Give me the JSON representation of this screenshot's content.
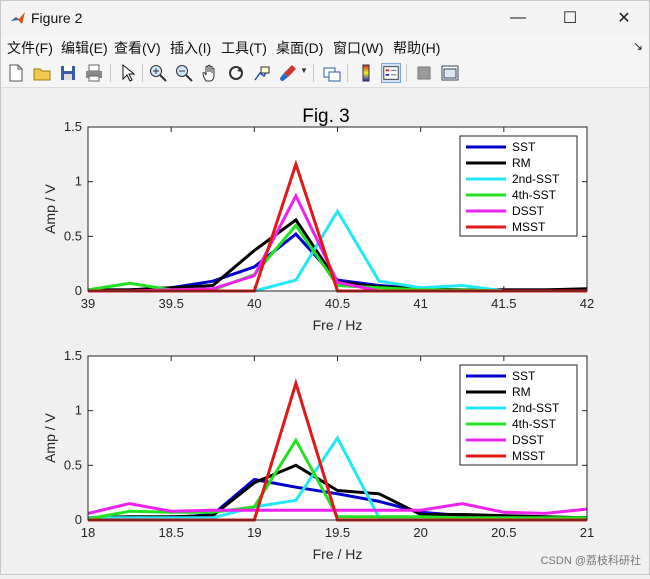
{
  "window": {
    "title": "Figure 2",
    "controls": {
      "minimize": "—",
      "maximize": "☐",
      "close": "✕"
    }
  },
  "menu": {
    "items": [
      "文件(F)",
      "编辑(E)",
      "查看(V)",
      "插入(I)",
      "工具(T)",
      "桌面(D)",
      "窗口(W)",
      "帮助(H)"
    ],
    "overflow": "↘"
  },
  "toolbar": {
    "icons": [
      "new-figure-icon",
      "open-file-icon",
      "save-icon",
      "print-icon",
      "pointer-icon",
      "zoom-in-icon",
      "zoom-out-icon",
      "pan-icon",
      "rotate-3d-icon",
      "data-cursor-icon",
      "brush-icon",
      "link-plot-icon",
      "colorbar-icon",
      "legend-icon",
      "hide-plot-tools-icon",
      "show-plot-tools-icon"
    ]
  },
  "figure": {
    "title": "Fig. 3"
  },
  "colors": {
    "SST": "#0000cc",
    "RM": "#000000",
    "2nd-SST": "#22e8f5",
    "4th-SST": "#22e022",
    "DSST": "#ee22ee",
    "MSST": "#e01818"
  },
  "chart_data": [
    {
      "type": "line",
      "xlabel": "Fre / Hz",
      "ylabel": "Amp / V",
      "xlim": [
        39,
        42
      ],
      "ylim": [
        0,
        1.5
      ],
      "xticks": [
        39,
        39.5,
        40,
        40.5,
        41,
        41.5,
        42
      ],
      "xtick_labels": [
        "39",
        "39.5",
        "40",
        "40.5",
        "41",
        "41.5",
        "42"
      ],
      "yticks": [
        0,
        0.5,
        1,
        1.5
      ],
      "ytick_labels": [
        "0",
        "0.5",
        "1",
        "1.5"
      ],
      "legend_position": "top-right",
      "series": [
        {
          "name": "SST",
          "x": [
            39,
            39.25,
            39.5,
            39.75,
            40,
            40.25,
            40.5,
            40.75,
            41,
            41.25,
            41.5,
            41.75,
            42
          ],
          "values": [
            0.01,
            0.01,
            0.03,
            0.09,
            0.22,
            0.52,
            0.1,
            0.05,
            0.02,
            0.01,
            0.01,
            0.01,
            0.01
          ]
        },
        {
          "name": "RM",
          "x": [
            39,
            39.25,
            39.5,
            39.75,
            40,
            40.25,
            40.5,
            40.75,
            41,
            41.25,
            41.5,
            41.75,
            42
          ],
          "values": [
            0.01,
            0.01,
            0.03,
            0.05,
            0.37,
            0.65,
            0.08,
            0.04,
            0.02,
            0.01,
            0.01,
            0.01,
            0.02
          ]
        },
        {
          "name": "2nd-SST",
          "x": [
            39,
            39.25,
            39.5,
            39.75,
            40,
            40.25,
            40.5,
            40.75,
            41,
            41.25,
            41.5,
            41.75,
            42
          ],
          "values": [
            0.0,
            0.0,
            0.0,
            0.0,
            0.0,
            0.1,
            0.73,
            0.09,
            0.03,
            0.05,
            0.0,
            0.0,
            0.0
          ]
        },
        {
          "name": "4th-SST",
          "x": [
            39,
            39.25,
            39.5,
            39.75,
            40,
            40.25,
            40.5,
            40.75,
            41,
            41.25,
            41.5,
            41.75,
            42
          ],
          "values": [
            0.01,
            0.07,
            0.01,
            0.01,
            0.15,
            0.6,
            0.05,
            0.03,
            0.01,
            0.01,
            0.0,
            0.0,
            0.0
          ]
        },
        {
          "name": "DSST",
          "x": [
            39,
            39.25,
            39.5,
            39.75,
            40,
            40.25,
            40.5,
            40.75,
            41,
            41.25,
            41.5,
            41.75,
            42
          ],
          "values": [
            0.0,
            0.0,
            0.01,
            0.02,
            0.14,
            0.87,
            0.08,
            0.0,
            0.0,
            0.0,
            0.0,
            0.0,
            0.0
          ]
        },
        {
          "name": "MSST",
          "x": [
            39,
            39.25,
            39.5,
            39.75,
            40,
            40.25,
            40.5,
            40.75,
            41,
            41.25,
            41.5,
            41.75,
            42
          ],
          "values": [
            0.0,
            0.0,
            0.0,
            0.0,
            0.0,
            1.16,
            0.0,
            0.0,
            0.0,
            0.0,
            0.0,
            0.0,
            0.0
          ]
        }
      ]
    },
    {
      "type": "line",
      "xlabel": "Fre / Hz",
      "ylabel": "Amp / V",
      "xlim": [
        18,
        21
      ],
      "ylim": [
        0,
        1.5
      ],
      "xticks": [
        18,
        18.5,
        19,
        19.5,
        20,
        20.5,
        21
      ],
      "xtick_labels": [
        "18",
        "18.5",
        "19",
        "19.5",
        "20",
        "20.5",
        "21"
      ],
      "yticks": [
        0,
        0.5,
        1,
        1.5
      ],
      "ytick_labels": [
        "0",
        "0.5",
        "1",
        "1.5"
      ],
      "legend_position": "top-right",
      "series": [
        {
          "name": "SST",
          "x": [
            18,
            18.25,
            18.5,
            18.75,
            19,
            19.25,
            19.5,
            19.75,
            20,
            20.25,
            20.5,
            20.75,
            21
          ],
          "values": [
            0.01,
            0.02,
            0.02,
            0.05,
            0.37,
            0.3,
            0.24,
            0.17,
            0.07,
            0.04,
            0.03,
            0.02,
            0.02
          ]
        },
        {
          "name": "RM",
          "x": [
            18,
            18.25,
            18.5,
            18.75,
            19,
            19.25,
            19.5,
            19.75,
            20,
            20.25,
            20.5,
            20.75,
            21
          ],
          "values": [
            0.02,
            0.03,
            0.03,
            0.04,
            0.34,
            0.5,
            0.27,
            0.24,
            0.05,
            0.05,
            0.04,
            0.03,
            0.02
          ]
        },
        {
          "name": "2nd-SST",
          "x": [
            18,
            18.25,
            18.5,
            18.75,
            19,
            19.25,
            19.5,
            19.75,
            20,
            20.25,
            20.5,
            20.75,
            21
          ],
          "values": [
            0.02,
            0.02,
            0.02,
            0.02,
            0.12,
            0.18,
            0.75,
            0.02,
            0.02,
            0.01,
            0.01,
            0.01,
            0.01
          ]
        },
        {
          "name": "4th-SST",
          "x": [
            18,
            18.25,
            18.5,
            18.75,
            19,
            19.25,
            19.5,
            19.75,
            20,
            20.25,
            20.5,
            20.75,
            21
          ],
          "values": [
            0.01,
            0.08,
            0.07,
            0.07,
            0.12,
            0.73,
            0.03,
            0.03,
            0.03,
            0.02,
            0.02,
            0.02,
            0.02
          ]
        },
        {
          "name": "DSST",
          "x": [
            18,
            18.25,
            18.5,
            18.75,
            19,
            19.25,
            19.5,
            19.75,
            20,
            20.25,
            20.5,
            20.75,
            21
          ],
          "values": [
            0.06,
            0.15,
            0.08,
            0.09,
            0.09,
            0.09,
            0.09,
            0.09,
            0.09,
            0.15,
            0.07,
            0.06,
            0.1
          ]
        },
        {
          "name": "MSST",
          "x": [
            18,
            18.25,
            18.5,
            18.75,
            19,
            19.25,
            19.5,
            19.75,
            20,
            20.25,
            20.5,
            20.75,
            21
          ],
          "values": [
            0.0,
            0.0,
            0.0,
            0.0,
            0.0,
            1.25,
            0.0,
            0.0,
            0.0,
            0.0,
            0.0,
            0.0,
            0.0
          ]
        }
      ]
    }
  ],
  "watermark": "CSDN @荔枝科研社"
}
